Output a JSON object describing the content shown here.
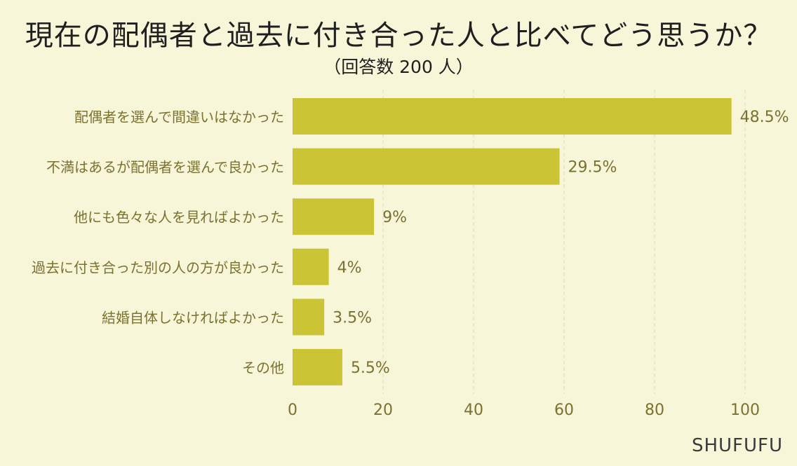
{
  "title": "現在の配偶者と過去に付き合った人と比べてどう思うか？",
  "subtitle": "（回答数 200 人）",
  "brand": "SHUFUFU",
  "colors": {
    "background": "#f7f6d8",
    "bar": "#cbc435",
    "label_text": "#7b7130",
    "grid": "#dcdab8"
  },
  "chart_data": {
    "type": "bar",
    "orientation": "horizontal",
    "categories": [
      "配偶者を選んで間違いはなかった",
      "不満はあるが配偶者を選んで良かった",
      "他にも色々な人を見ればよかった",
      "過去に付き合った別の人の方が良かった",
      "結婚自体しなければよかった",
      "その他"
    ],
    "values": [
      48.5,
      29.5,
      9,
      4,
      3.5,
      5.5
    ],
    "value_labels": [
      "48.5%",
      "29.5%",
      "9%",
      "4%",
      "3.5%",
      "5.5%"
    ],
    "plotted_values": [
      97,
      59,
      18,
      8,
      7,
      11
    ],
    "xlim": [
      0,
      100
    ],
    "xticks": [
      "0",
      "20",
      "40",
      "60",
      "80",
      "100"
    ],
    "grid": "vertical dashed"
  }
}
